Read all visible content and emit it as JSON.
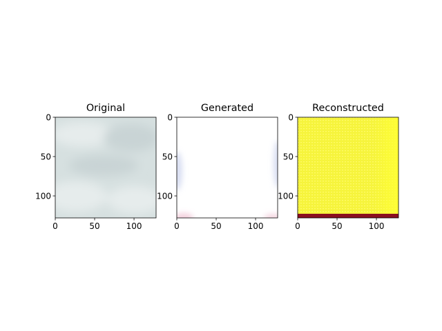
{
  "chart_data": [
    {
      "type": "image",
      "title": "Original",
      "xticks": [
        0,
        50,
        100
      ],
      "yticks": [
        0,
        50,
        100
      ],
      "xlim": [
        0,
        128
      ],
      "ylim": [
        128,
        0
      ],
      "content": "cloudy sky",
      "colors": {
        "base": "#d6e0e0",
        "light": "#e6ecec",
        "dark": "#c9d4d5"
      }
    },
    {
      "type": "image",
      "title": "Generated",
      "xticks": [
        0,
        50,
        100
      ],
      "yticks": [
        0,
        50,
        100
      ],
      "xlim": [
        0,
        128
      ],
      "ylim": [
        128,
        0
      ],
      "content": "mostly white with faint blue and pink tints near the left, right and bottom edges",
      "colors": {
        "base": "#ffffff",
        "blue_tint": "#c9d0ec",
        "pink_tint": "#f1c6d6"
      }
    },
    {
      "type": "image",
      "title": "Reconstructed",
      "xticks": [
        0,
        50,
        100
      ],
      "yticks": [
        0,
        50,
        100
      ],
      "xlim": [
        0,
        128
      ],
      "ylim": [
        128,
        0
      ],
      "content": "yellow grid pattern with a dark red band along the bottom edge",
      "colors": {
        "base": "#f6f43c",
        "grid": "#fffb6a",
        "bright": "#ffff33",
        "bottom_band": "#8a1020"
      }
    }
  ]
}
